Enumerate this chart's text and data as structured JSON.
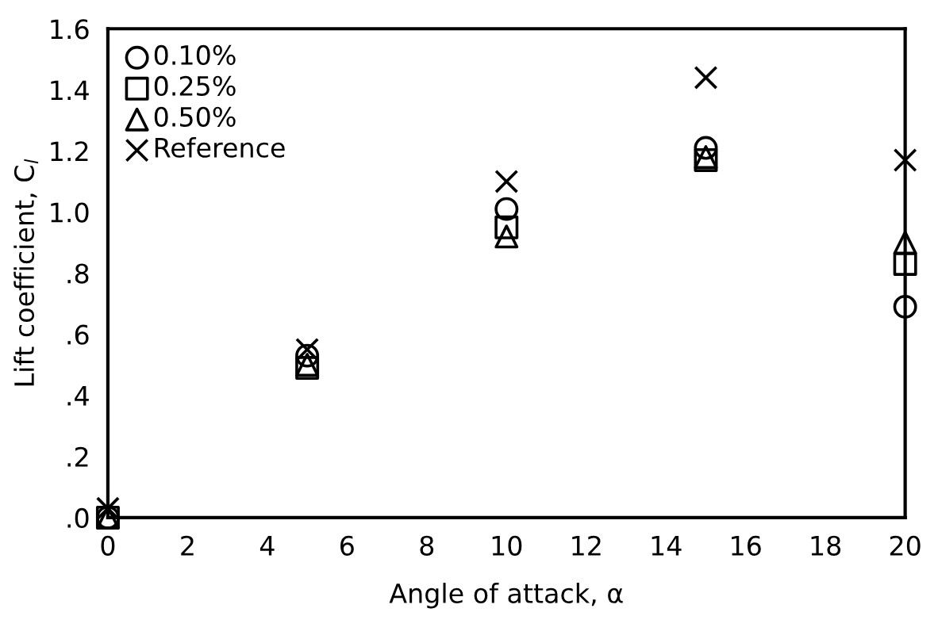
{
  "chart_data": {
    "type": "scatter",
    "xlabel": "Angle of attack, α",
    "ylabel": "Lift coefficient, C$_{l}$",
    "x": [
      0,
      5,
      10,
      15,
      20
    ],
    "series": [
      {
        "name": "0.10%",
        "color": "#000000",
        "marker": "circle",
        "values": [
          0.0,
          0.53,
          1.01,
          1.21,
          0.69
        ]
      },
      {
        "name": "0.25%",
        "color": "#000000",
        "marker": "square",
        "values": [
          0.0,
          0.49,
          0.95,
          1.17,
          0.83
        ]
      },
      {
        "name": "0.50%",
        "color": "#000000",
        "marker": "triangle",
        "values": [
          0.0,
          0.5,
          0.92,
          1.18,
          0.9
        ]
      },
      {
        "name": "Reference",
        "color": "#000000",
        "marker": "cross",
        "values": [
          0.03,
          0.55,
          1.1,
          1.44,
          1.17
        ]
      }
    ],
    "xlim": [
      0,
      20
    ],
    "xticks": [
      0,
      2,
      4,
      6,
      8,
      10,
      12,
      14,
      16,
      18,
      20
    ],
    "ylim": [
      0,
      1.6
    ],
    "yticks": [
      {
        "value": 0,
        "label": ".0"
      },
      {
        "value": 0.2,
        "label": ".2"
      },
      {
        "value": 0.4,
        "label": ".4"
      },
      {
        "value": 0.6,
        "label": ".6"
      },
      {
        "value": 0.8,
        "label": ".8"
      },
      {
        "value": 1.0,
        "label": "1.0"
      },
      {
        "value": 1.2,
        "label": "1.2"
      },
      {
        "value": 1.4,
        "label": "1.4"
      },
      {
        "value": 1.6,
        "label": "1.6"
      }
    ],
    "grid": false,
    "legend": "top left"
  }
}
